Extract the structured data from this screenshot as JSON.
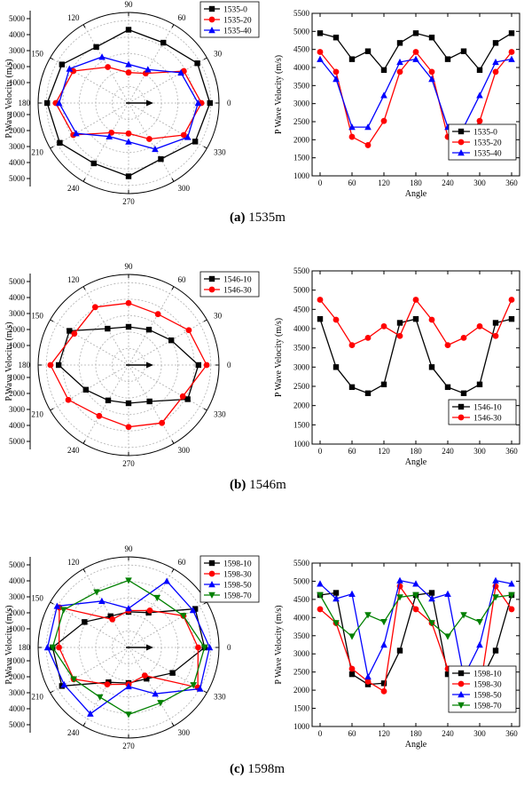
{
  "colors": {
    "black": "#000000",
    "red": "#ff0000",
    "blue": "#0000ff",
    "green": "#008000"
  },
  "captions": [
    {
      "label": "(a)",
      "text": "1535m"
    },
    {
      "label": "(b)",
      "text": "1546m"
    },
    {
      "label": "(c)",
      "text": "1598m"
    }
  ],
  "chart_data": [
    {
      "type": "polar",
      "panel": "a",
      "ylabel": "P Wave Velocity (m/s)",
      "angle_ticks": [
        "0",
        "30",
        "60",
        "90",
        "120",
        "150",
        "180",
        "210",
        "240",
        "270",
        "300",
        "330"
      ],
      "radial_ticks": [
        "1000",
        "2000",
        "3000",
        "4000",
        "5000"
      ],
      "radial_range": [
        0,
        5500
      ],
      "angles": [
        0,
        30,
        60,
        90,
        120,
        150,
        180,
        210,
        240,
        270,
        300,
        330,
        360
      ],
      "series": [
        {
          "name": "1535-0",
          "color": "#000000",
          "marker": "square",
          "values": [
            4950,
            4830,
            4230,
            4450,
            3930,
            4680,
            4950,
            4830,
            4230,
            4450,
            3930,
            4680,
            4950
          ]
        },
        {
          "name": "1535-20",
          "color": "#ff0000",
          "marker": "circle",
          "values": [
            4430,
            3880,
            2080,
            1850,
            2520,
            3880,
            4430,
            3880,
            2080,
            1850,
            2520,
            3880,
            4430
          ]
        },
        {
          "name": "1535-40",
          "color": "#0000ff",
          "marker": "triangle",
          "values": [
            4230,
            3680,
            2350,
            2350,
            3230,
            4150,
            4230,
            3680,
            2350,
            2350,
            3230,
            4150,
            4230
          ]
        }
      ]
    },
    {
      "type": "line",
      "panel": "a",
      "xlabel": "Angle",
      "ylabel": "P Wave Velocity (m/s)",
      "xlim": [
        -15,
        375
      ],
      "ylim": [
        1000,
        5500
      ],
      "xticks": [
        0,
        60,
        120,
        180,
        240,
        300,
        360
      ],
      "yticks": [
        1000,
        1500,
        2000,
        2500,
        3000,
        3500,
        4000,
        4500,
        5000,
        5500
      ],
      "x": [
        0,
        30,
        60,
        90,
        120,
        150,
        180,
        210,
        240,
        270,
        300,
        330,
        360
      ],
      "series": [
        {
          "name": "1535-0",
          "color": "#000000",
          "marker": "square",
          "values": [
            4950,
            4830,
            4230,
            4450,
            3930,
            4680,
            4950,
            4830,
            4230,
            4450,
            3930,
            4680,
            4950
          ]
        },
        {
          "name": "1535-20",
          "color": "#ff0000",
          "marker": "circle",
          "values": [
            4430,
            3880,
            2080,
            1850,
            2520,
            3880,
            4430,
            3880,
            2080,
            1850,
            2520,
            3880,
            4430
          ]
        },
        {
          "name": "1535-40",
          "color": "#0000ff",
          "marker": "triangle",
          "values": [
            4230,
            3680,
            2350,
            2350,
            3230,
            4150,
            4230,
            3680,
            2350,
            2350,
            3230,
            4150,
            4230
          ]
        }
      ]
    },
    {
      "type": "polar",
      "panel": "b",
      "ylabel": "P Wave Velocity (m/s)",
      "angle_ticks": [
        "0",
        "30",
        "60",
        "90",
        "120",
        "150",
        "180",
        "210",
        "240",
        "270",
        "300",
        "330"
      ],
      "radial_ticks": [
        "1000",
        "2000",
        "3000",
        "4000",
        "5000"
      ],
      "radial_range": [
        0,
        5500
      ],
      "angles": [
        0,
        30,
        60,
        90,
        120,
        150,
        180,
        210,
        240,
        270,
        300,
        330,
        360
      ],
      "series": [
        {
          "name": "1546-10",
          "color": "#000000",
          "marker": "square",
          "values": [
            4250,
            3000,
            2480,
            2320,
            2550,
            4150,
            4250,
            3000,
            2480,
            2320,
            2550,
            4150,
            4250
          ]
        },
        {
          "name": "1546-30",
          "color": "#ff0000",
          "marker": "circle",
          "values": [
            4750,
            4230,
            3570,
            3760,
            4060,
            3810,
            4750,
            4230,
            3570,
            3760,
            4060,
            3810,
            4750
          ]
        }
      ]
    },
    {
      "type": "line",
      "panel": "b",
      "xlabel": "Angle",
      "ylabel": "P Wave Velocity (m/s)",
      "xlim": [
        -15,
        375
      ],
      "ylim": [
        1000,
        5500
      ],
      "xticks": [
        0,
        60,
        120,
        180,
        240,
        300,
        360
      ],
      "yticks": [
        1000,
        1500,
        2000,
        2500,
        3000,
        3500,
        4000,
        4500,
        5000,
        5500
      ],
      "x": [
        0,
        30,
        60,
        90,
        120,
        150,
        180,
        210,
        240,
        270,
        300,
        330,
        360
      ],
      "series": [
        {
          "name": "1546-10",
          "color": "#000000",
          "marker": "square",
          "values": [
            4250,
            3000,
            2480,
            2320,
            2550,
            4150,
            4250,
            3000,
            2480,
            2320,
            2550,
            4150,
            4250
          ]
        },
        {
          "name": "1546-30",
          "color": "#ff0000",
          "marker": "circle",
          "values": [
            4750,
            4230,
            3570,
            3760,
            4060,
            3810,
            4750,
            4230,
            3570,
            3760,
            4060,
            3810,
            4750
          ]
        }
      ]
    },
    {
      "type": "polar",
      "panel": "c",
      "ylabel": "P Wave Velocity (m/s)",
      "angle_ticks": [
        "0",
        "30",
        "60",
        "90",
        "120",
        "150",
        "180",
        "210",
        "240",
        "270",
        "300",
        "330"
      ],
      "radial_ticks": [
        "1000",
        "2000",
        "3000",
        "4000",
        "5000"
      ],
      "radial_range": [
        0,
        5500
      ],
      "angles": [
        0,
        30,
        60,
        90,
        120,
        150,
        180,
        210,
        240,
        270,
        300,
        330,
        360
      ],
      "series": [
        {
          "name": "1598-10",
          "color": "#000000",
          "marker": "square",
          "values": [
            4620,
            4680,
            2440,
            2160,
            2190,
            3090,
            4620,
            4680,
            2440,
            2160,
            2190,
            3090,
            4620
          ]
        },
        {
          "name": "1598-30",
          "color": "#ff0000",
          "marker": "circle",
          "values": [
            4230,
            3850,
            2590,
            2240,
            1970,
            4860,
            4230,
            3850,
            2590,
            2240,
            1970,
            4860,
            4230
          ]
        },
        {
          "name": "1598-50",
          "color": "#0000ff",
          "marker": "triangle",
          "values": [
            4930,
            4520,
            4650,
            2370,
            3250,
            5020,
            4930,
            4520,
            4650,
            2370,
            3250,
            5020,
            4930
          ]
        },
        {
          "name": "1598-70",
          "color": "#008000",
          "marker": "triangle-down",
          "values": [
            4620,
            3850,
            3480,
            4070,
            3880,
            4560,
            4620,
            3850,
            3480,
            4070,
            3880,
            4560,
            4620
          ]
        }
      ]
    },
    {
      "type": "line",
      "panel": "c",
      "xlabel": "Angle",
      "ylabel": "P Wave Velocity (m/s)",
      "xlim": [
        -15,
        375
      ],
      "ylim": [
        1000,
        5500
      ],
      "xticks": [
        0,
        60,
        120,
        180,
        240,
        300,
        360
      ],
      "yticks": [
        1000,
        1500,
        2000,
        2500,
        3000,
        3500,
        4000,
        4500,
        5000,
        5500
      ],
      "x": [
        0,
        30,
        60,
        90,
        120,
        150,
        180,
        210,
        240,
        270,
        300,
        330,
        360
      ],
      "series": [
        {
          "name": "1598-10",
          "color": "#000000",
          "marker": "square",
          "values": [
            4620,
            4680,
            2440,
            2160,
            2190,
            3090,
            4620,
            4680,
            2440,
            2160,
            2190,
            3090,
            4620
          ]
        },
        {
          "name": "1598-30",
          "color": "#ff0000",
          "marker": "circle",
          "values": [
            4230,
            3850,
            2590,
            2240,
            1970,
            4860,
            4230,
            3850,
            2590,
            2240,
            1970,
            4860,
            4230
          ]
        },
        {
          "name": "1598-50",
          "color": "#0000ff",
          "marker": "triangle",
          "values": [
            4930,
            4520,
            4650,
            2370,
            3250,
            5020,
            4930,
            4520,
            4650,
            2370,
            3250,
            5020,
            4930
          ]
        },
        {
          "name": "1598-70",
          "color": "#008000",
          "marker": "triangle-down",
          "values": [
            4620,
            3850,
            3480,
            4070,
            3880,
            4560,
            4620,
            3850,
            3480,
            4070,
            3880,
            4560,
            4620
          ]
        }
      ]
    }
  ]
}
